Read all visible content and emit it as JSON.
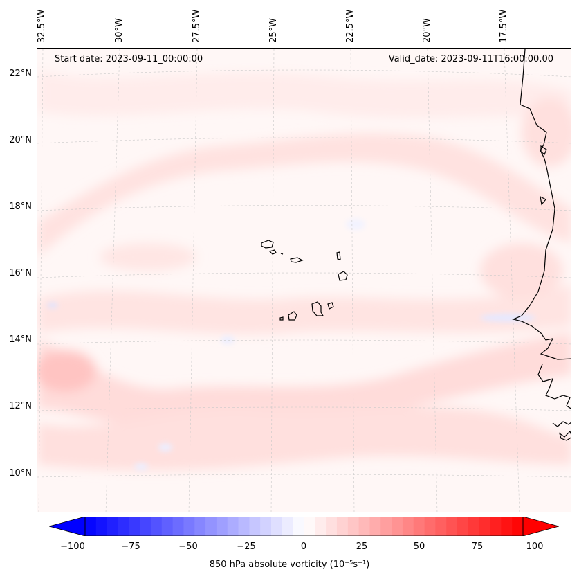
{
  "header": {
    "start_date": "Start date: 2023-09-11_00:00:00",
    "valid_date": "Valid_date: 2023-09-11T16:00:00.00"
  },
  "axes": {
    "longitude_labels": [
      "32.5°W",
      "30°W",
      "27.5°W",
      "25°W",
      "22.5°W",
      "20°W",
      "17.5°W"
    ],
    "latitude_labels": [
      "22°N",
      "20°N",
      "18°N",
      "16°N",
      "14°N",
      "12°N",
      "10°N"
    ]
  },
  "colorbar": {
    "label": "850 hPa absolute vorticity (10⁻⁵s⁻¹)",
    "ticks": [
      "−100",
      "−75",
      "−50",
      "−25",
      "0",
      "25",
      "50",
      "75",
      "100"
    ],
    "min": -100,
    "max": 100,
    "extend": "both",
    "colormap": "bwr",
    "neg_color": "#0000ff",
    "zero_color": "#ffffff",
    "pos_color": "#ff0000"
  },
  "map": {
    "region": "Cabo Verde and West African coast",
    "gridlines": true,
    "background_color": "#fff7f6"
  }
}
